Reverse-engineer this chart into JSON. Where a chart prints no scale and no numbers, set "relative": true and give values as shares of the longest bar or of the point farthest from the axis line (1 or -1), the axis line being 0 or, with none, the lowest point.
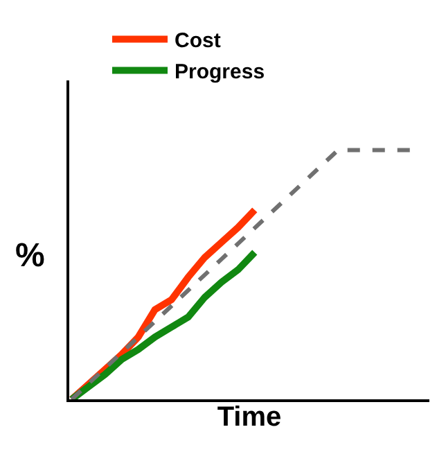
{
  "chart_data": {
    "type": "line",
    "relative": true,
    "xlabel": "Time",
    "ylabel": "%",
    "legend": "top",
    "marker": "none",
    "categories": [
      null,
      null,
      null,
      null,
      null,
      null,
      null,
      null,
      null,
      null,
      null,
      null,
      null,
      null,
      null,
      null,
      null,
      null,
      null,
      null,
      null,
      null
    ],
    "series": [
      {
        "name": "Cost",
        "color": "#ff3300",
        "line_style": "solid",
        "values": [
          0,
          0.06,
          0.12,
          0.18,
          0.25,
          0.36,
          0.4,
          0.49,
          0.57,
          0.63,
          0.69,
          0.76,
          null,
          null,
          null,
          null,
          null,
          null,
          null,
          null,
          null,
          null
        ]
      },
      {
        "name": "Progress",
        "color": "#118811",
        "line_style": "solid",
        "values": [
          0,
          0.05,
          0.1,
          0.16,
          0.2,
          0.25,
          0.29,
          0.33,
          0.41,
          0.47,
          0.52,
          0.59,
          null,
          null,
          null,
          null,
          null,
          null,
          null,
          null,
          null,
          null
        ]
      },
      {
        "color": "#707070",
        "line_style": "dashed",
        "values": [
          0,
          0.0625,
          0.125,
          0.1875,
          0.25,
          0.3125,
          0.375,
          0.4375,
          0.5,
          0.5625,
          0.625,
          0.6875,
          0.75,
          0.8125,
          0.875,
          0.9375,
          1,
          1,
          1,
          1,
          1,
          1
        ]
      }
    ]
  }
}
